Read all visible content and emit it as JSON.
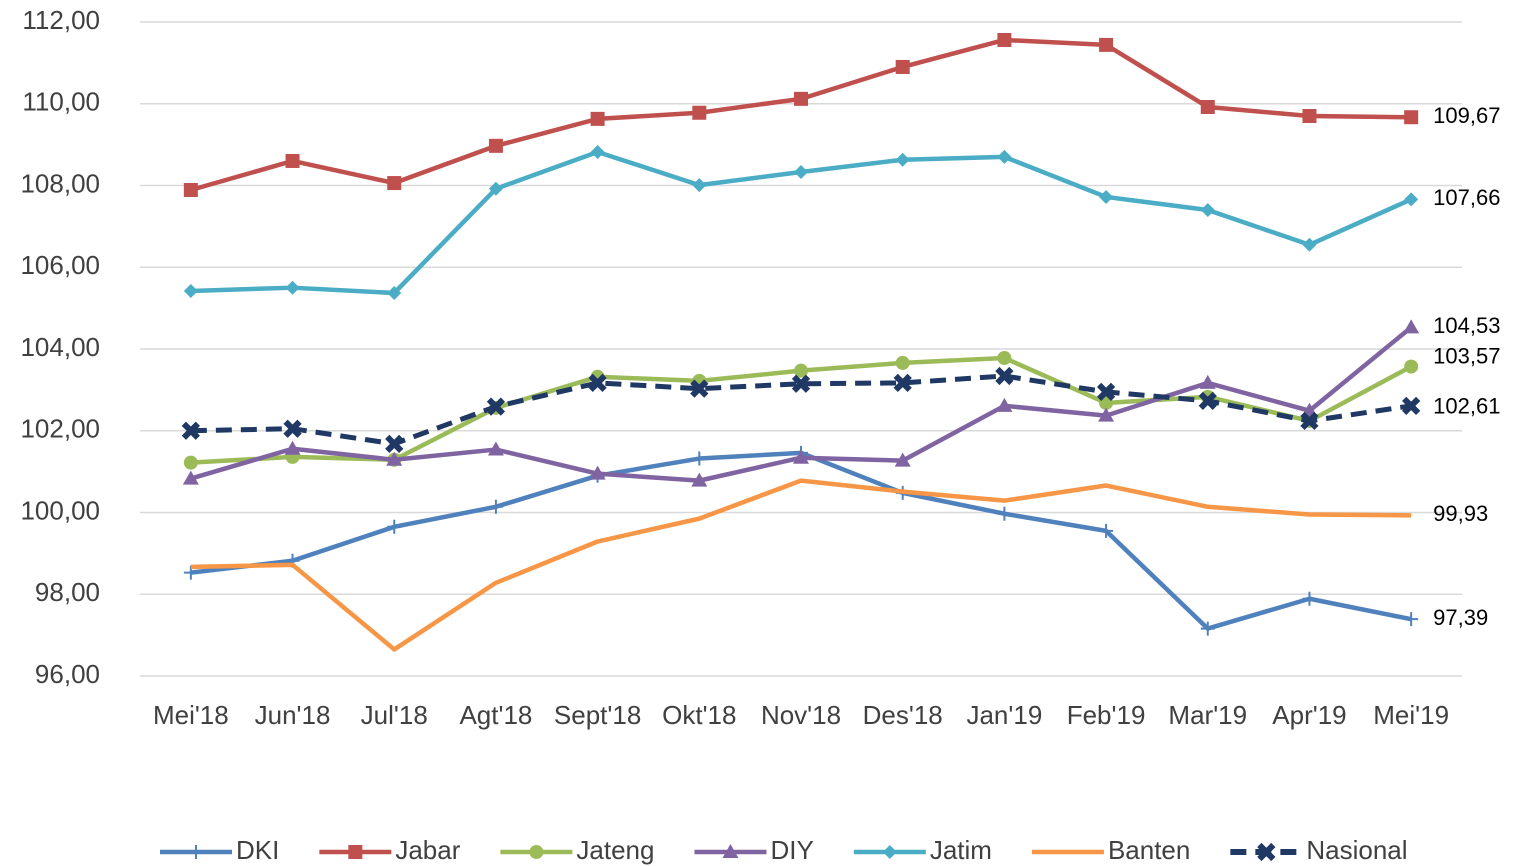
{
  "chart_data": {
    "type": "line",
    "categories": [
      "Mei'18",
      "Jun'18",
      "Jul'18",
      "Agt'18",
      "Sept'18",
      "Okt'18",
      "Nov'18",
      "Des'18",
      "Jan'19",
      "Feb'19",
      "Mar'19",
      "Apr'19",
      "Mei'19"
    ],
    "ylim": [
      96,
      112
    ],
    "yticks": [
      {
        "value": 96,
        "label": "96,00"
      },
      {
        "value": 98,
        "label": "98,00"
      },
      {
        "value": 100,
        "label": "100,00"
      },
      {
        "value": 102,
        "label": "102,00"
      },
      {
        "value": 104,
        "label": "104,00"
      },
      {
        "value": 106,
        "label": "106,00"
      },
      {
        "value": 108,
        "label": "108,00"
      },
      {
        "value": 110,
        "label": "110,00"
      },
      {
        "value": 112,
        "label": "112,00"
      }
    ],
    "grid": true,
    "legend": "bottom",
    "series": [
      {
        "name": "DKI",
        "color": "#4f81bd",
        "marker": "plus",
        "values": [
          98.53,
          98.82,
          99.65,
          100.14,
          100.9,
          101.32,
          101.46,
          100.48,
          99.97,
          99.55,
          97.16,
          97.89,
          97.39
        ],
        "value_labels": [
          null,
          null,
          null,
          null,
          null,
          null,
          null,
          null,
          null,
          null,
          null,
          null,
          "97,39"
        ]
      },
      {
        "name": "Jabar",
        "color": "#c0504d",
        "marker": "square",
        "values": [
          107.89,
          108.6,
          108.06,
          108.97,
          109.63,
          109.78,
          110.12,
          110.9,
          111.56,
          111.44,
          109.92,
          109.7,
          109.67
        ],
        "value_labels": [
          null,
          null,
          null,
          null,
          null,
          null,
          null,
          null,
          null,
          null,
          null,
          null,
          "109,67"
        ]
      },
      {
        "name": "Jateng",
        "color": "#9bbb59",
        "marker": "circle",
        "values": [
          101.22,
          101.36,
          101.29,
          102.56,
          103.32,
          103.22,
          103.47,
          103.66,
          103.78,
          102.68,
          102.83,
          102.24,
          103.57
        ],
        "value_labels": [
          null,
          null,
          null,
          null,
          null,
          null,
          null,
          null,
          null,
          null,
          null,
          null,
          "103,57"
        ]
      },
      {
        "name": "DIY",
        "color": "#8064a2",
        "marker": "triangle",
        "values": [
          100.83,
          101.56,
          101.29,
          101.54,
          100.95,
          100.78,
          101.34,
          101.27,
          102.61,
          102.37,
          103.17,
          102.49,
          104.53
        ],
        "value_labels": [
          null,
          null,
          null,
          null,
          null,
          null,
          null,
          null,
          null,
          null,
          null,
          null,
          "104,53"
        ]
      },
      {
        "name": "Jatim",
        "color": "#4bacc6",
        "marker": "diamond",
        "values": [
          105.42,
          105.5,
          105.37,
          107.92,
          108.82,
          108.01,
          108.33,
          108.63,
          108.7,
          107.72,
          107.4,
          106.55,
          107.66
        ],
        "value_labels": [
          null,
          null,
          null,
          null,
          null,
          null,
          null,
          null,
          null,
          null,
          null,
          null,
          "107,66"
        ]
      },
      {
        "name": "Banten",
        "color": "#f79646",
        "marker": "none",
        "values": [
          98.67,
          98.72,
          96.65,
          98.28,
          99.29,
          99.85,
          100.78,
          100.51,
          100.29,
          100.66,
          100.14,
          99.95,
          99.93
        ],
        "value_labels": [
          null,
          null,
          null,
          null,
          null,
          null,
          null,
          null,
          null,
          null,
          null,
          null,
          "99,93"
        ]
      },
      {
        "name": "Nasional",
        "color": "#1f3864",
        "marker": "x",
        "dashed": true,
        "values": [
          102.0,
          102.05,
          101.68,
          102.59,
          103.17,
          103.03,
          103.15,
          103.17,
          103.34,
          102.95,
          102.73,
          102.24,
          102.61
        ],
        "value_labels": [
          null,
          null,
          null,
          null,
          null,
          null,
          null,
          null,
          null,
          null,
          null,
          null,
          "102,61"
        ]
      }
    ]
  }
}
